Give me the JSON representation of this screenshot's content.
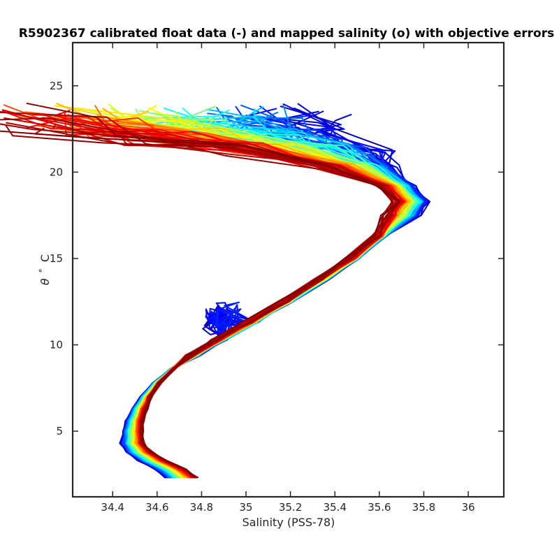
{
  "chart_data": {
    "type": "line",
    "title": "R5902367 calibrated float data (-) and mapped salinity (o) with objective errors",
    "xlabel": "Salinity (PSS-78)",
    "ylabel_symbol": "θ",
    "ylabel_degree": "°",
    "ylabel_unit": "C",
    "xlim": [
      34.22,
      36.16
    ],
    "ylim": [
      1.2,
      27.5
    ],
    "x_ticks": [
      34.4,
      34.6,
      34.8,
      35,
      35.2,
      35.4,
      35.6,
      35.8,
      36
    ],
    "x_tick_labels": [
      "34.4",
      "34.6",
      "34.8",
      "35",
      "35.2",
      "35.4",
      "35.6",
      "35.8",
      "36"
    ],
    "y_ticks": [
      5,
      10,
      15,
      20,
      25
    ],
    "y_tick_labels": [
      "5",
      "10",
      "15",
      "20",
      "25"
    ],
    "grid": false,
    "colormap": "jet",
    "colors": [
      "#00008f",
      "#0000ff",
      "#0080ff",
      "#00ffff",
      "#80ff80",
      "#ffff00",
      "#ff8000",
      "#ff0000",
      "#800000"
    ],
    "profile_count": 120,
    "profile_template": [
      {
        "S": 34.71,
        "T": 2.3
      },
      {
        "S": 34.66,
        "T": 2.8
      },
      {
        "S": 34.58,
        "T": 3.3
      },
      {
        "S": 34.52,
        "T": 3.8
      },
      {
        "S": 34.49,
        "T": 4.3
      },
      {
        "S": 34.49,
        "T": 5.0
      },
      {
        "S": 34.5,
        "T": 5.6
      },
      {
        "S": 34.52,
        "T": 6.3
      },
      {
        "S": 34.55,
        "T": 7.0
      },
      {
        "S": 34.6,
        "T": 7.8
      },
      {
        "S": 34.67,
        "T": 8.6
      },
      {
        "S": 34.76,
        "T": 9.4
      },
      {
        "S": 34.88,
        "T": 10.3
      },
      {
        "S": 35.02,
        "T": 11.3
      },
      {
        "S": 35.18,
        "T": 12.5
      },
      {
        "S": 35.34,
        "T": 13.8
      },
      {
        "S": 35.48,
        "T": 15.0
      },
      {
        "S": 35.6,
        "T": 16.3
      },
      {
        "S": 35.7,
        "T": 17.5
      },
      {
        "S": 35.74,
        "T": 18.3
      },
      {
        "S": 35.68,
        "T": 19.2
      },
      {
        "S": 35.5,
        "T": 20.3
      },
      {
        "S": 35.25,
        "T": 21.3
      },
      {
        "S": 34.95,
        "T": 22.0
      },
      {
        "S": 34.7,
        "T": 22.6
      },
      {
        "S": 34.55,
        "T": 23.2
      }
    ]
  }
}
